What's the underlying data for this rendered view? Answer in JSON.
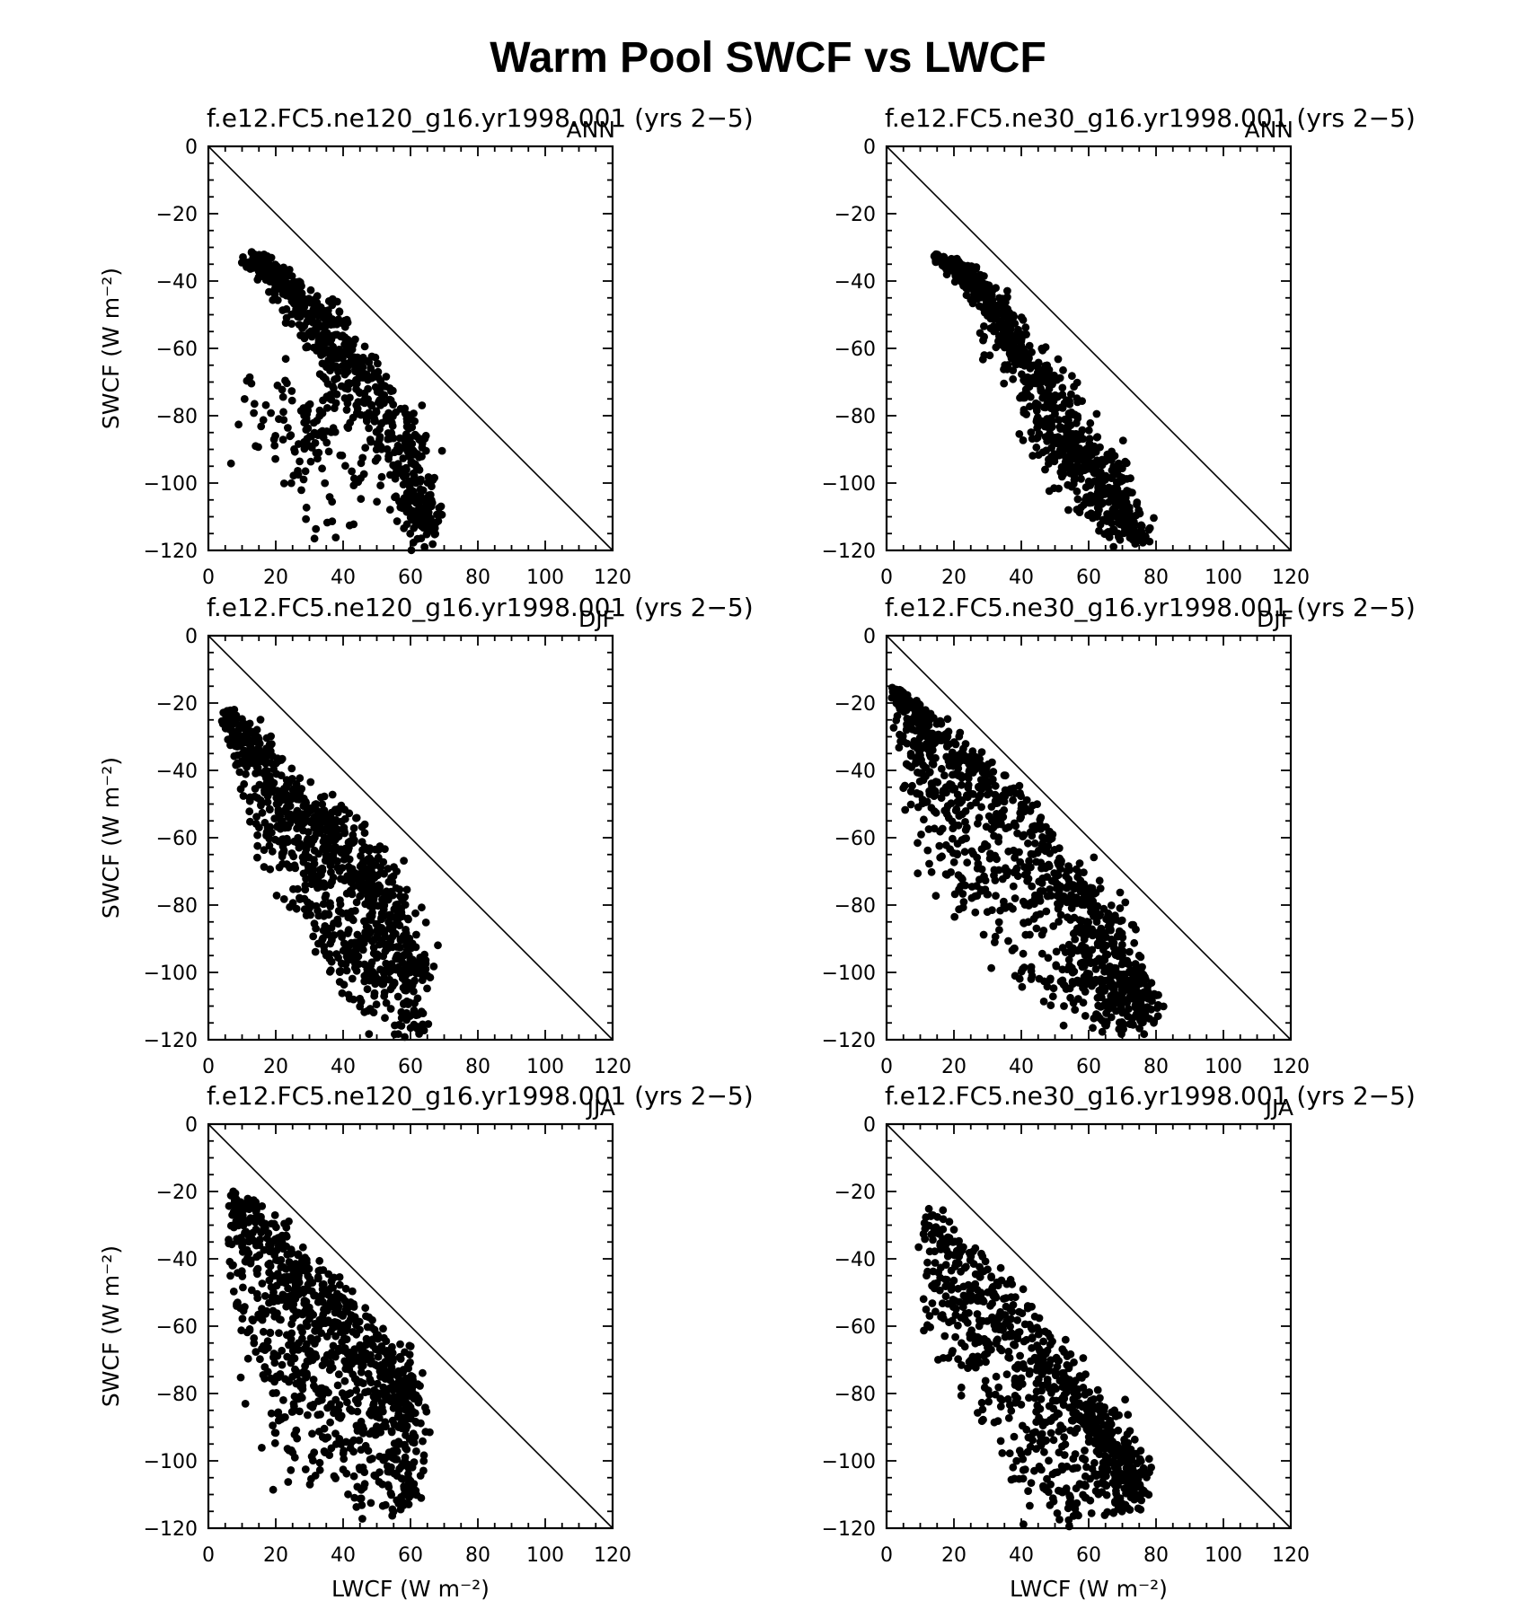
{
  "figure": {
    "title": "Warm Pool SWCF vs LWCF"
  },
  "chart_data": [
    {
      "type": "scatter",
      "title": "f.e12.FC5.ne120_g16.yr1998.001 (yrs 2−5)",
      "season": "ANN",
      "xlabel": "",
      "ylabel": "SWCF (W m⁻²)",
      "xlim": [
        0,
        120
      ],
      "ylim": [
        -120,
        0
      ],
      "xticks": [
        "0",
        "20",
        "40",
        "60",
        "80",
        "100",
        "120"
      ],
      "yticks": [
        "0",
        "−20",
        "−40",
        "−60",
        "−80",
        "−100",
        "−120"
      ],
      "reference_line": "one-to-one",
      "points": {
        "n": 650,
        "seed": 11,
        "band": [
          [
            11,
            -32,
            -34,
            1.5,
            2
          ],
          [
            20,
            -37,
            -42,
            2,
            3
          ],
          [
            30,
            -44,
            -60,
            3,
            4
          ],
          [
            40,
            -54,
            -74,
            3,
            4
          ],
          [
            52,
            -75,
            -85,
            4,
            5
          ],
          [
            60,
            -90,
            -112,
            4,
            6
          ],
          [
            65,
            -112,
            -120,
            2,
            3
          ]
        ],
        "extra": [
          [
            30,
            -85,
            10,
            14,
            150
          ]
        ]
      }
    },
    {
      "type": "scatter",
      "title": "f.e12.FC5.ne30_g16.yr1998.001 (yrs 2−5)",
      "season": "ANN",
      "xlabel": "",
      "ylabel": "",
      "xlim": [
        0,
        120
      ],
      "ylim": [
        -120,
        0
      ],
      "xticks": [
        "0",
        "20",
        "40",
        "60",
        "80",
        "100",
        "120"
      ],
      "yticks": [
        "0",
        "−20",
        "−40",
        "−60",
        "−80",
        "−100",
        "−120"
      ],
      "reference_line": "one-to-one",
      "points": {
        "n": 900,
        "seed": 23,
        "band": [
          [
            15,
            -32,
            -33,
            1,
            1
          ],
          [
            25,
            -38,
            -42,
            2,
            2
          ],
          [
            35,
            -50,
            -60,
            3,
            3
          ],
          [
            45,
            -65,
            -85,
            3,
            3
          ],
          [
            55,
            -82,
            -105,
            4,
            4
          ],
          [
            65,
            -95,
            -115,
            4,
            4
          ],
          [
            75,
            -115,
            -118,
            2,
            2
          ]
        ]
      }
    },
    {
      "type": "scatter",
      "title": "f.e12.FC5.ne120_g16.yr1998.001 (yrs 2−5)",
      "season": "DJF",
      "xlabel": "",
      "ylabel": "SWCF (W m⁻²)",
      "xlim": [
        0,
        120
      ],
      "ylim": [
        -120,
        0
      ],
      "xticks": [
        "0",
        "20",
        "40",
        "60",
        "80",
        "100",
        "120"
      ],
      "yticks": [
        "0",
        "−20",
        "−40",
        "−60",
        "−80",
        "−100",
        "−120"
      ],
      "reference_line": "one-to-one",
      "points": {
        "n": 1000,
        "seed": 37,
        "band": [
          [
            5,
            -22,
            -28,
            1,
            2
          ],
          [
            15,
            -30,
            -60,
            2,
            3
          ],
          [
            25,
            -45,
            -80,
            3,
            4
          ],
          [
            35,
            -52,
            -95,
            3,
            4
          ],
          [
            45,
            -62,
            -110,
            4,
            5
          ],
          [
            55,
            -75,
            -118,
            4,
            5
          ],
          [
            62,
            -100,
            -118,
            3,
            4
          ]
        ]
      }
    },
    {
      "type": "scatter",
      "title": "f.e12.FC5.ne30_g16.yr1998.001 (yrs 2−5)",
      "season": "DJF",
      "xlabel": "",
      "ylabel": "",
      "xlim": [
        0,
        120
      ],
      "ylim": [
        -120,
        0
      ],
      "xticks": [
        "0",
        "20",
        "40",
        "60",
        "80",
        "100",
        "120"
      ],
      "yticks": [
        "0",
        "−20",
        "−40",
        "−60",
        "−80",
        "−100",
        "−120"
      ],
      "reference_line": "one-to-one",
      "points": {
        "n": 1050,
        "seed": 41,
        "band": [
          [
            3,
            -16,
            -18,
            1,
            1
          ],
          [
            12,
            -24,
            -70,
            3,
            3
          ],
          [
            25,
            -36,
            -85,
            3,
            4
          ],
          [
            40,
            -50,
            -100,
            3,
            4
          ],
          [
            55,
            -70,
            -112,
            4,
            4
          ],
          [
            65,
            -85,
            -118,
            4,
            4
          ],
          [
            78,
            -108,
            -117,
            2,
            2
          ]
        ]
      }
    },
    {
      "type": "scatter",
      "title": "f.e12.FC5.ne120_g16.yr1998.001 (yrs 2−5)",
      "season": "JJA",
      "xlabel": "LWCF (W m⁻²)",
      "ylabel": "SWCF (W m⁻²)",
      "xlim": [
        0,
        120
      ],
      "ylim": [
        -120,
        0
      ],
      "xticks": [
        "0",
        "20",
        "40",
        "60",
        "80",
        "100",
        "120"
      ],
      "yticks": [
        "0",
        "−20",
        "−40",
        "−60",
        "−80",
        "−100",
        "−120"
      ],
      "reference_line": "one-to-one",
      "points": {
        "n": 1000,
        "seed": 53,
        "band": [
          [
            7,
            -20,
            -45,
            1,
            2
          ],
          [
            15,
            -26,
            -75,
            3,
            4
          ],
          [
            25,
            -38,
            -105,
            3,
            5
          ],
          [
            35,
            -48,
            -105,
            3,
            5
          ],
          [
            45,
            -58,
            -115,
            4,
            5
          ],
          [
            55,
            -70,
            -118,
            4,
            5
          ],
          [
            60,
            -78,
            -110,
            2,
            3
          ]
        ]
      }
    },
    {
      "type": "scatter",
      "title": "f.e12.FC5.ne30_g16.yr1998.001 (yrs 2−5)",
      "season": "JJA",
      "xlabel": "LWCF (W m⁻²)",
      "ylabel": "",
      "xlim": [
        0,
        120
      ],
      "ylim": [
        -120,
        0
      ],
      "xticks": [
        "0",
        "20",
        "40",
        "60",
        "80",
        "100",
        "120"
      ],
      "yticks": [
        "0",
        "−20",
        "−40",
        "−60",
        "−80",
        "−100",
        "−120"
      ],
      "reference_line": "one-to-one",
      "points": {
        "n": 850,
        "seed": 67,
        "band": [
          [
            12,
            -25,
            -55,
            2,
            3
          ],
          [
            22,
            -35,
            -75,
            3,
            3
          ],
          [
            35,
            -50,
            -100,
            3,
            4
          ],
          [
            45,
            -62,
            -115,
            3,
            4
          ],
          [
            55,
            -75,
            -118,
            4,
            4
          ],
          [
            65,
            -88,
            -118,
            4,
            4
          ],
          [
            75,
            -105,
            -112,
            2,
            2
          ]
        ]
      }
    }
  ]
}
